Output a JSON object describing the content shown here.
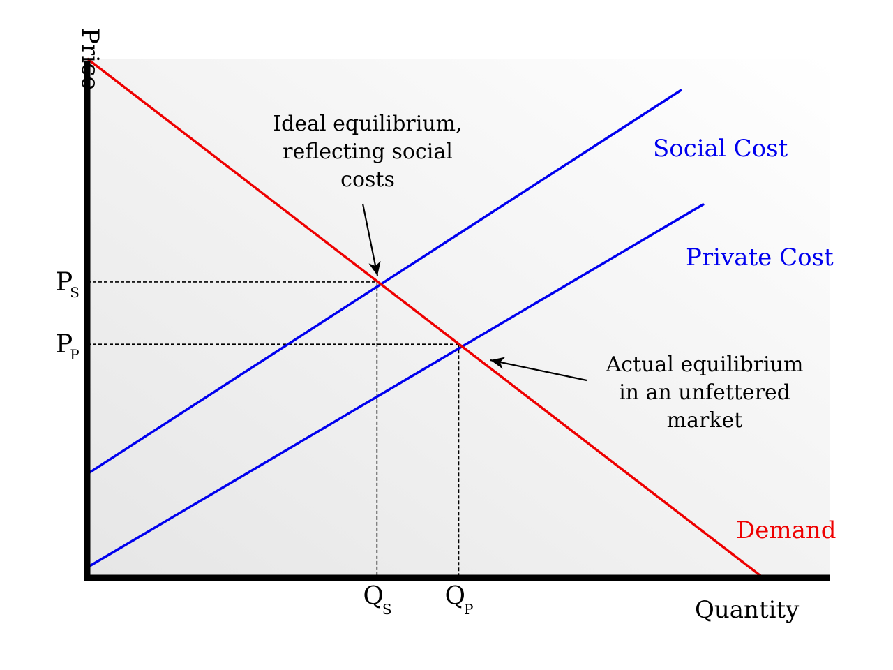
{
  "chart_data": {
    "type": "line",
    "title": "",
    "xlabel": "Quantity",
    "ylabel": "Price",
    "xlim": [
      0,
      10
    ],
    "ylim": [
      0,
      10
    ],
    "grid": false,
    "legend": "none",
    "colors": {
      "demand": "#ee0000",
      "cost": "#0000ee",
      "axis": "#000000",
      "guide": "#000000"
    },
    "series": [
      {
        "name": "Social Cost",
        "color": "#0000ee",
        "points": [
          {
            "x": 0,
            "y": 2.0
          },
          {
            "x": 8.0,
            "y": 9.4
          }
        ]
      },
      {
        "name": "Private Cost",
        "color": "#0000ee",
        "points": [
          {
            "x": 0,
            "y": 0.2
          },
          {
            "x": 8.3,
            "y": 7.2
          }
        ]
      },
      {
        "name": "Demand",
        "color": "#ee0000",
        "points": [
          {
            "x": 0,
            "y": 10.0
          },
          {
            "x": 9.1,
            "y": 0
          }
        ]
      }
    ],
    "equilibria": [
      {
        "x": 3.9,
        "y": 5.7,
        "x_label_main": "Q",
        "x_label_sub": "S",
        "y_label_main": "P",
        "y_label_sub": "S"
      },
      {
        "x": 5.0,
        "y": 4.5,
        "x_label_main": "Q",
        "x_label_sub": "P",
        "y_label_main": "P",
        "y_label_sub": "P"
      }
    ],
    "annotations": [
      {
        "lines": [
          "Ideal equilibrium,",
          "reflecting social",
          "costs"
        ],
        "target": 0
      },
      {
        "lines": [
          "Actual equilibrium",
          "in an unfettered",
          "market"
        ],
        "target": 1
      }
    ]
  }
}
